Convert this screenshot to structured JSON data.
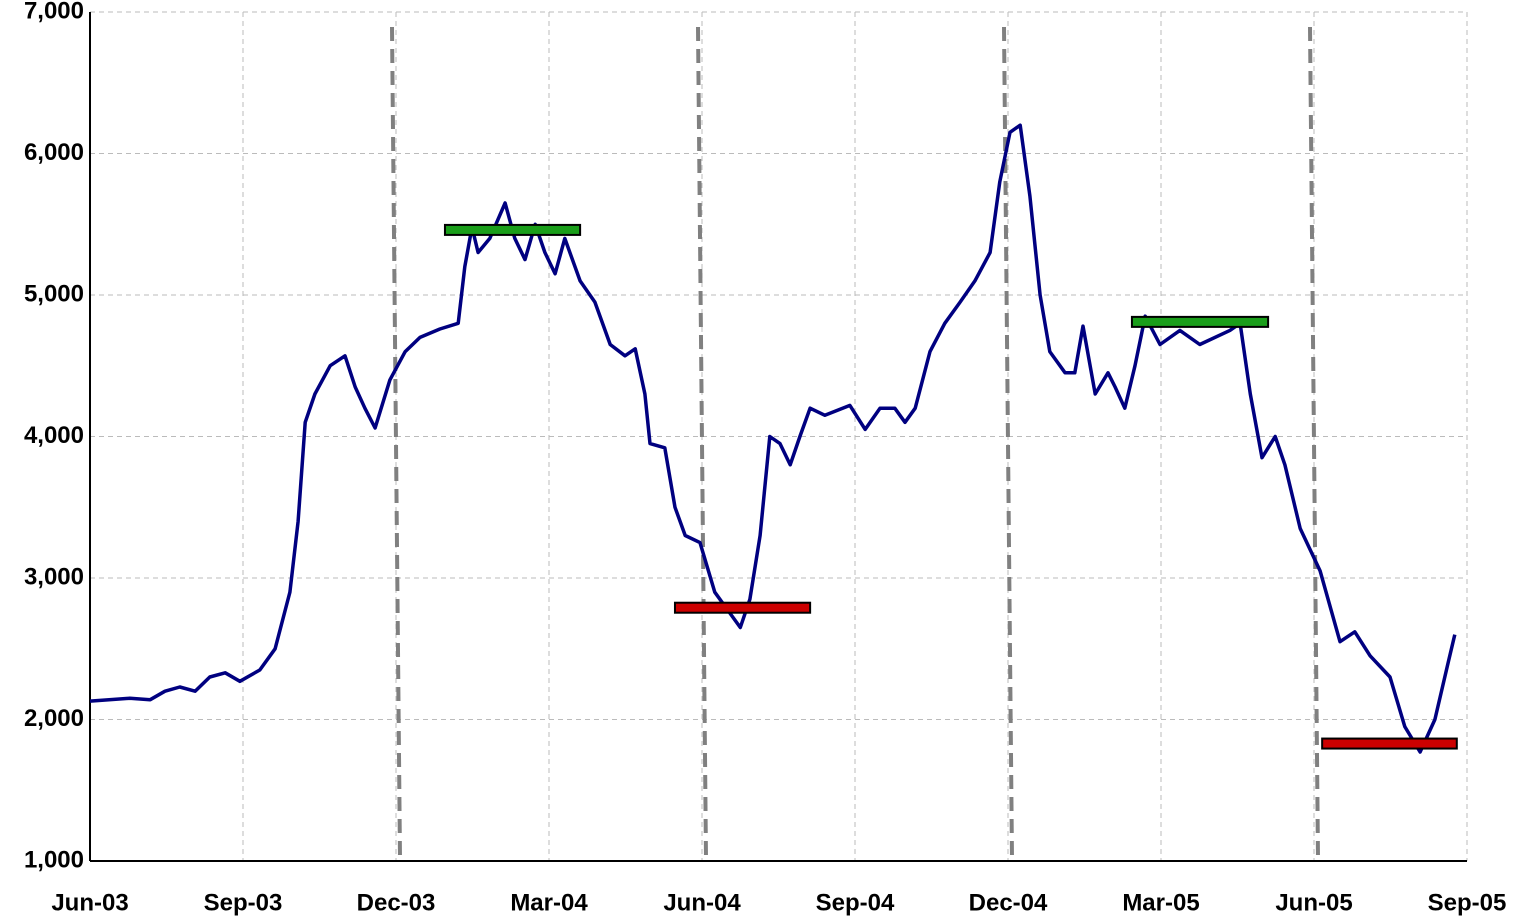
{
  "chart_data": {
    "type": "line",
    "series": [
      {
        "color": "#000080",
        "x": [
          0,
          0.78,
          1.18,
          1.47,
          1.76,
          2.06,
          2.35,
          2.65,
          2.94,
          3.33,
          3.63,
          3.92,
          4.08,
          4.22,
          4.41,
          4.71,
          5,
          5.2,
          5.39,
          5.59,
          5.88,
          6.18,
          6.47,
          6.86,
          7.22,
          7.35,
          7.49,
          7.61,
          7.84,
          8.14,
          8.33,
          8.53,
          8.73,
          8.92,
          9.12,
          9.31,
          9.61,
          9.9,
          10.2,
          10.49,
          10.69,
          10.88,
          10.98,
          11.27,
          11.47,
          11.67,
          11.96,
          12.25,
          12.55,
          12.75,
          12.94,
          13.14,
          13.33,
          13.53,
          13.73,
          13.92,
          14.12,
          14.41,
          14.9,
          15.2,
          15.49,
          15.78,
          15.98,
          16.18,
          16.47,
          16.76,
          17.06,
          17.35,
          17.65,
          17.84,
          18.04,
          18.24,
          18.43,
          18.63,
          18.82,
          19.12,
          19.31,
          19.47,
          19.71,
          19.96,
          20.1,
          20.29,
          20.49,
          20.69,
          20.98,
          21.37,
          21.76,
          22.35,
          22.55,
          22.75,
          22.98,
          23.24,
          23.43,
          23.73,
          24.12,
          24.51,
          24.8,
          25.1,
          25.49,
          25.78,
          26.08,
          26.37,
          26.63,
          26.76
        ],
        "values": [
          2130,
          2150,
          2140,
          2200,
          2230,
          2200,
          2300,
          2330,
          2270,
          2350,
          2500,
          2900,
          3400,
          4100,
          4300,
          4500,
          4570,
          4350,
          4200,
          4060,
          4400,
          4600,
          4700,
          4760,
          4800,
          5200,
          5480,
          5300,
          5400,
          5650,
          5400,
          5250,
          5500,
          5300,
          5150,
          5400,
          5100,
          4950,
          4650,
          4570,
          4620,
          4300,
          3950,
          3920,
          3500,
          3300,
          3250,
          2900,
          2750,
          2650,
          2850,
          3300,
          4000,
          3950,
          3800,
          4000,
          4200,
          4150,
          4220,
          4050,
          4200,
          4200,
          4100,
          4200,
          4600,
          4800,
          4950,
          5100,
          5300,
          5800,
          6150,
          6200,
          5700,
          5000,
          4600,
          4450,
          4450,
          4780,
          4300,
          4450,
          4350,
          4200,
          4500,
          4850,
          4650,
          4750,
          4650,
          4750,
          4800,
          4300,
          3850,
          4000,
          3800,
          3350,
          3050,
          2550,
          2620,
          2450,
          2300,
          1950,
          1770,
          2000,
          2400,
          2600
        ]
      }
    ],
    "vlines": [
      6,
      12,
      18,
      24
    ],
    "bands": [
      {
        "y": 5460,
        "x0": 6.96,
        "x1": 9.61,
        "color": "#1a9e1a"
      },
      {
        "y": 2790,
        "x0": 11.47,
        "x1": 14.12,
        "color": "#cc0000"
      },
      {
        "y": 4810,
        "x0": 20.43,
        "x1": 23.1,
        "color": "#1a9e1a"
      },
      {
        "y": 1830,
        "x0": 24.16,
        "x1": 26.8,
        "color": "#cc0000"
      }
    ],
    "xlim": [
      0,
      27
    ],
    "xticks": [
      {
        "value": 0,
        "label": "Jun-03"
      },
      {
        "value": 3,
        "label": "Sep-03"
      },
      {
        "value": 6,
        "label": "Dec-03"
      },
      {
        "value": 9,
        "label": "Mar-04"
      },
      {
        "value": 12,
        "label": "Jun-04"
      },
      {
        "value": 15,
        "label": "Sep-04"
      },
      {
        "value": 18,
        "label": "Dec-04"
      },
      {
        "value": 21,
        "label": "Mar-05"
      },
      {
        "value": 24,
        "label": "Jun-05"
      },
      {
        "value": 27,
        "label": "Sep-05"
      }
    ],
    "ylim": [
      1000,
      7000
    ],
    "yticks": [
      {
        "value": 1000,
        "label": "1,000"
      },
      {
        "value": 2000,
        "label": "2,000"
      },
      {
        "value": 3000,
        "label": "3,000"
      },
      {
        "value": 4000,
        "label": "4,000"
      },
      {
        "value": 5000,
        "label": "5,000"
      },
      {
        "value": 6000,
        "label": "6,000"
      },
      {
        "value": 7000,
        "label": "7,000"
      }
    ],
    "grid": true
  }
}
